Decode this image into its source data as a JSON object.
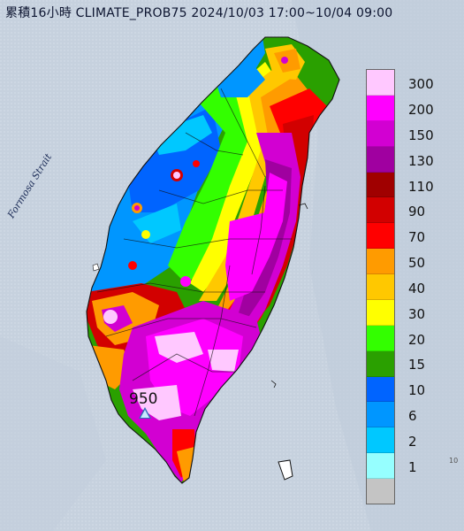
{
  "title": "累積16小時 CLIMATE_PROB75 2024/10/03 17:00~10/04 09:00",
  "sea_label": "Formosa Strait",
  "peak": {
    "value": "950"
  },
  "edge_mark": "10",
  "legend": {
    "labels": [
      "300",
      "200",
      "150",
      "130",
      "110",
      "90",
      "70",
      "50",
      "40",
      "30",
      "20",
      "15",
      "10",
      "6",
      "2",
      "1"
    ],
    "colors": [
      "#ffc8ff",
      "#ff00ff",
      "#d200d2",
      "#a000a0",
      "#a00000",
      "#d20000",
      "#ff0000",
      "#ff9b00",
      "#ffc800",
      "#ffff00",
      "#33ff00",
      "#2aa000",
      "#0064ff",
      "#0096ff",
      "#00c8ff",
      "#96ffff",
      "#c4c4c4"
    ]
  }
}
